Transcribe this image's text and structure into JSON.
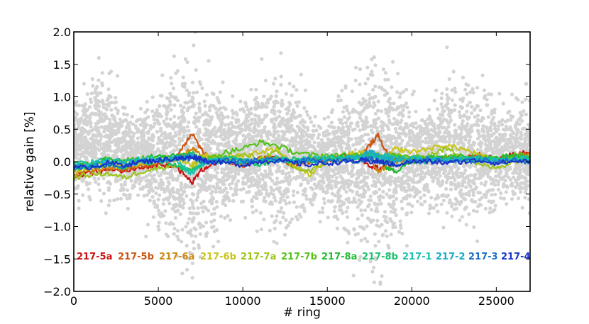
{
  "chart_data": {
    "type": "line",
    "title": "",
    "xlabel": "# ring",
    "ylabel": "relative gain [%]",
    "xlim": [
      0,
      27000
    ],
    "ylim": [
      -2.0,
      2.0
    ],
    "x_ticks": [
      0,
      5000,
      10000,
      15000,
      20000,
      25000
    ],
    "x_tick_labels": [
      "0",
      "5000",
      "10000",
      "15000",
      "20000",
      "25000"
    ],
    "y_ticks": [
      2.0,
      1.5,
      1.0,
      0.5,
      0.0,
      -0.5,
      -1.0,
      -1.5,
      -2.0
    ],
    "y_tick_labels": [
      "2.0",
      "1.5",
      "1.0",
      "0.5",
      "0.0",
      "−0.5",
      "−1.0",
      "−1.5",
      "−2.0"
    ],
    "grid": false,
    "legend_placement": "bottom, inside plot",
    "background_scatter": {
      "color": "#d3d3d3",
      "description_points": [
        {
          "x": 0,
          "center": 0.3,
          "spread": 0.9
        },
        {
          "x": 1500,
          "center": 0.4,
          "spread": 1.3
        },
        {
          "x": 3500,
          "center": 0.1,
          "spread": 0.8
        },
        {
          "x": 7000,
          "center": 0.0,
          "spread": 2.0
        },
        {
          "x": 9500,
          "center": 0.1,
          "spread": 0.9
        },
        {
          "x": 12000,
          "center": 0.2,
          "spread": 1.5
        },
        {
          "x": 14500,
          "center": 0.0,
          "spread": 0.8
        },
        {
          "x": 18000,
          "center": 0.0,
          "spread": 2.0
        },
        {
          "x": 20500,
          "center": 0.1,
          "spread": 0.9
        },
        {
          "x": 23000,
          "center": 0.2,
          "spread": 1.5
        },
        {
          "x": 25500,
          "center": 0.1,
          "spread": 0.9
        },
        {
          "x": 27000,
          "center": 0.2,
          "spread": 1.2
        }
      ]
    },
    "x": [
      0,
      1000,
      2000,
      3000,
      4000,
      5000,
      6000,
      6500,
      7000,
      7500,
      8000,
      9000,
      10000,
      11000,
      12000,
      13000,
      14000,
      15000,
      16000,
      17000,
      17500,
      18000,
      18500,
      19000,
      20000,
      21000,
      22000,
      23000,
      24000,
      25000,
      26000,
      27000
    ],
    "series": [
      {
        "name": "217-5a",
        "color": "#cc1111",
        "values": [
          -0.22,
          -0.18,
          -0.12,
          -0.15,
          -0.1,
          -0.05,
          -0.05,
          -0.2,
          -0.32,
          -0.15,
          -0.05,
          0.0,
          -0.05,
          0.02,
          0.05,
          -0.02,
          0.05,
          0.02,
          0.08,
          0.05,
          -0.05,
          -0.1,
          -0.05,
          0.05,
          0.05,
          0.02,
          0.05,
          0.05,
          0.1,
          0.05,
          0.1,
          0.15
        ]
      },
      {
        "name": "217-5b",
        "color": "#cc5511",
        "values": [
          -0.2,
          -0.15,
          -0.1,
          -0.12,
          -0.08,
          -0.02,
          0.05,
          0.25,
          0.45,
          0.2,
          0.05,
          0.02,
          -0.05,
          0.05,
          0.05,
          -0.05,
          0.0,
          0.05,
          0.1,
          0.1,
          0.25,
          0.4,
          0.15,
          0.05,
          0.0,
          0.05,
          0.05,
          0.05,
          0.1,
          0.05,
          0.1,
          0.12
        ]
      },
      {
        "name": "217-6a",
        "color": "#cc8811",
        "values": [
          -0.18,
          -0.12,
          -0.08,
          -0.1,
          -0.05,
          0.0,
          0.02,
          0.1,
          0.2,
          0.1,
          0.02,
          0.0,
          -0.02,
          0.02,
          0.05,
          -0.02,
          0.02,
          0.05,
          0.05,
          0.05,
          0.1,
          -0.15,
          -0.1,
          0.0,
          0.02,
          0.05,
          0.02,
          0.05,
          0.05,
          0.02,
          0.05,
          0.1
        ]
      },
      {
        "name": "217-6b",
        "color": "#c9c41a",
        "values": [
          -0.15,
          -0.1,
          -0.05,
          -0.08,
          0.0,
          0.05,
          0.05,
          0.02,
          -0.05,
          0.05,
          0.1,
          0.08,
          0.1,
          0.15,
          0.2,
          -0.05,
          -0.2,
          0.05,
          0.1,
          0.15,
          0.1,
          0.1,
          0.05,
          0.2,
          0.15,
          0.2,
          0.25,
          0.2,
          0.1,
          0.0,
          0.05,
          0.02
        ]
      },
      {
        "name": "217-7a",
        "color": "#9ac61a",
        "values": [
          -0.25,
          -0.2,
          -0.18,
          -0.25,
          -0.15,
          -0.1,
          -0.05,
          -0.1,
          -0.12,
          0.0,
          0.05,
          0.05,
          0.1,
          0.05,
          0.15,
          -0.1,
          -0.15,
          0.0,
          0.05,
          0.1,
          0.05,
          0.1,
          0.05,
          0.1,
          0.05,
          0.1,
          0.2,
          0.1,
          -0.05,
          -0.1,
          0.0,
          0.05
        ]
      },
      {
        "name": "217-7b",
        "color": "#55c21a",
        "values": [
          -0.05,
          -0.02,
          0.05,
          0.02,
          0.05,
          0.05,
          0.05,
          0.08,
          0.1,
          0.05,
          0.05,
          0.15,
          0.2,
          0.3,
          0.25,
          0.15,
          0.1,
          0.1,
          0.08,
          0.1,
          0.05,
          0.1,
          0.05,
          0.1,
          0.1,
          0.05,
          0.1,
          0.05,
          0.08,
          0.05,
          0.1,
          0.1
        ]
      },
      {
        "name": "217-8a",
        "color": "#22bb33",
        "values": [
          0.0,
          -0.05,
          0.05,
          0.0,
          0.05,
          0.1,
          0.08,
          0.1,
          0.12,
          0.05,
          0.0,
          0.05,
          0.05,
          0.0,
          0.05,
          0.0,
          0.05,
          0.05,
          0.1,
          0.05,
          0.1,
          0.05,
          -0.1,
          -0.15,
          0.0,
          0.05,
          0.05,
          0.1,
          0.05,
          0.05,
          0.1,
          0.05
        ]
      },
      {
        "name": "217-8b",
        "color": "#1ac26e",
        "values": [
          -0.1,
          -0.08,
          -0.05,
          -0.08,
          -0.02,
          0.0,
          -0.05,
          -0.1,
          -0.15,
          -0.05,
          0.0,
          0.02,
          0.0,
          -0.05,
          0.02,
          0.05,
          0.0,
          0.05,
          0.05,
          0.05,
          0.1,
          0.05,
          0.05,
          0.02,
          0.05,
          0.0,
          0.05,
          0.02,
          0.05,
          0.02,
          0.05,
          0.02
        ]
      },
      {
        "name": "217-1",
        "color": "#1ac2b0",
        "values": [
          -0.05,
          0.0,
          0.02,
          0.0,
          0.05,
          0.05,
          0.05,
          -0.1,
          -0.18,
          -0.05,
          0.0,
          0.05,
          0.02,
          0.0,
          0.05,
          0.02,
          0.05,
          0.05,
          0.05,
          0.08,
          0.1,
          0.05,
          0.1,
          0.05,
          0.05,
          0.05,
          0.02,
          0.05,
          0.05,
          0.02,
          0.05,
          0.05
        ]
      },
      {
        "name": "217-2",
        "color": "#1aa9c9",
        "values": [
          -0.08,
          -0.05,
          0.0,
          -0.02,
          0.02,
          0.02,
          0.05,
          0.08,
          0.1,
          0.02,
          0.0,
          0.02,
          0.0,
          0.02,
          0.02,
          0.0,
          0.02,
          0.02,
          0.05,
          0.08,
          0.15,
          0.1,
          0.05,
          0.02,
          0.02,
          0.05,
          0.02,
          0.02,
          0.05,
          0.02,
          0.02,
          0.05
        ]
      },
      {
        "name": "217-3",
        "color": "#1a6ec9",
        "values": [
          -0.12,
          -0.08,
          -0.05,
          -0.08,
          0.0,
          0.02,
          0.05,
          0.05,
          0.05,
          0.02,
          0.0,
          0.02,
          0.0,
          0.02,
          0.02,
          0.0,
          0.02,
          0.0,
          0.02,
          0.02,
          0.05,
          0.02,
          0.0,
          -0.05,
          0.0,
          0.02,
          0.0,
          0.0,
          0.02,
          0.0,
          0.02,
          0.0
        ]
      },
      {
        "name": "217-4",
        "color": "#1a33c9",
        "values": [
          -0.1,
          -0.08,
          -0.02,
          -0.05,
          0.0,
          0.02,
          0.05,
          0.05,
          0.08,
          0.05,
          0.0,
          -0.02,
          -0.05,
          0.0,
          0.02,
          -0.02,
          -0.05,
          -0.02,
          0.0,
          0.02,
          0.0,
          0.0,
          -0.02,
          -0.05,
          0.0,
          0.0,
          -0.02,
          0.0,
          0.02,
          -0.02,
          0.0,
          0.02
        ]
      }
    ]
  }
}
